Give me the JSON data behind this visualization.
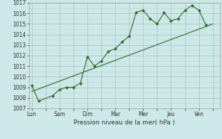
{
  "title": "",
  "xlabel": "Pression niveau de la mer( hPa )",
  "bg_color": "#cce8e8",
  "line_color": "#2d6e2d",
  "grid_major_color": "#b0c8c8",
  "grid_minor_color": "#c4dede",
  "ylim": [
    1007,
    1017
  ],
  "yticks": [
    1007,
    1008,
    1009,
    1010,
    1011,
    1012,
    1013,
    1014,
    1015,
    1016,
    1017
  ],
  "x_day_labels": [
    "Lun",
    "Sam",
    "Dim",
    "Mar",
    "Mer",
    "Jeu",
    "Ven"
  ],
  "x_day_positions": [
    0,
    2,
    4,
    6,
    8,
    10,
    12
  ],
  "x_minor_ticks": [
    1,
    3,
    5,
    7,
    9,
    11,
    13
  ],
  "xlim": [
    -0.2,
    13.5
  ],
  "series1_x": [
    0,
    0.5,
    1.5,
    2.0,
    2.5,
    3.0,
    3.5,
    4.0,
    4.5,
    5.0,
    5.5,
    6.0,
    6.5,
    7.0,
    7.5,
    8.0,
    8.5,
    9.0,
    9.5,
    10.0,
    10.5,
    11.0,
    11.5,
    12.0,
    12.5
  ],
  "series1_y": [
    1009.2,
    1007.7,
    1008.2,
    1008.8,
    1009.0,
    1009.0,
    1009.4,
    1011.9,
    1011.0,
    1011.5,
    1012.4,
    1012.65,
    1013.3,
    1013.85,
    1016.1,
    1016.3,
    1015.5,
    1015.0,
    1016.05,
    1015.3,
    1015.5,
    1016.3,
    1016.75,
    1016.3,
    1014.9
  ],
  "trend_x": [
    0,
    13.0
  ],
  "trend_y": [
    1008.6,
    1015.0
  ]
}
